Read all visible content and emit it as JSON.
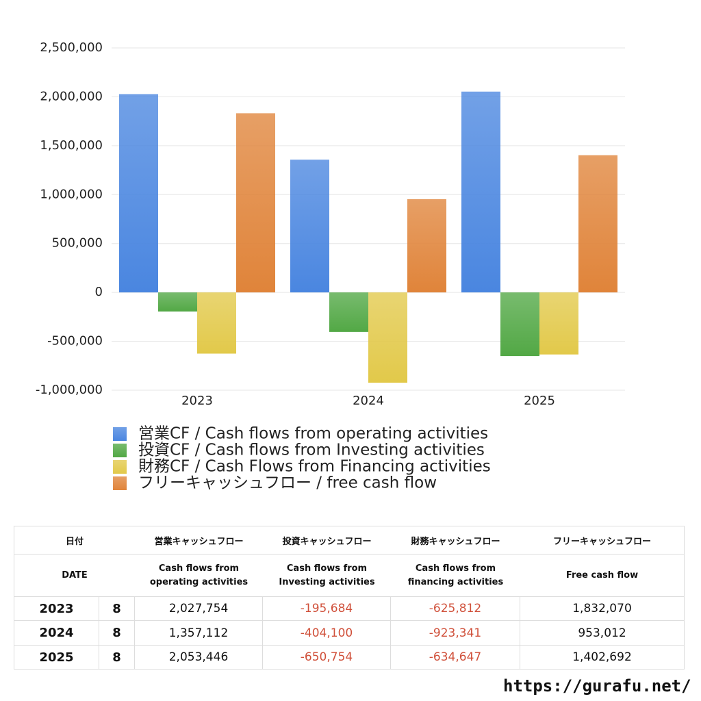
{
  "chart_data": {
    "type": "bar",
    "categories": [
      "2023",
      "2024",
      "2025"
    ],
    "series": [
      {
        "name": "営業CF / Cash flows from operating activities",
        "color": "#4a86e0",
        "values": [
          2027754,
          1357112,
          2053446
        ]
      },
      {
        "name": "投資CF / Cash flows from Investing activities",
        "color": "#52a845",
        "values": [
          -195684,
          -404100,
          -650754
        ]
      },
      {
        "name": "財務CF / Cash Flows from Financing activities",
        "color": "#e2c94a",
        "values": [
          -625812,
          -923341,
          -634647
        ]
      },
      {
        "name": "フリーキャッシュフロー / free cash flow",
        "color": "#e0843a",
        "values": [
          1832070,
          953012,
          1402692
        ]
      }
    ],
    "ylim": [
      -1000000,
      2500000
    ],
    "yticks": [
      {
        "value": -1000000,
        "label": "-1,000,000"
      },
      {
        "value": -500000,
        "label": "-500,000"
      },
      0,
      {
        "value": 500000,
        "label": "500,000"
      },
      {
        "value": 1000000,
        "label": "1,000,000"
      },
      {
        "value": 1500000,
        "label": "1,500,000"
      },
      {
        "value": 2000000,
        "label": "2,000,000"
      },
      {
        "value": 2500000,
        "label": "2,500,000"
      }
    ],
    "grid": true,
    "legend": "bottom"
  },
  "table": {
    "header": [
      [
        "日付",
        "営業キャッシュフロー",
        "投資キャッシュフロー",
        "財務キャッシュフロー",
        "フリーキャッシュフロー"
      ],
      [
        [
          "DATE"
        ],
        [
          "Cash flows from",
          "operating activities"
        ],
        [
          "Cash flows from",
          "Investing activities"
        ],
        [
          "Cash flows from",
          "financing activities"
        ],
        [
          "Free cash flow"
        ]
      ]
    ],
    "rows": [
      [
        "2023",
        "8",
        "2,027,754",
        "-195,684",
        "-625,812",
        "1,832,070"
      ],
      [
        "2024",
        "8",
        "1,357,112",
        "-404,100",
        "-923,341",
        "953,012"
      ],
      [
        "2025",
        "8",
        "2,053,446",
        "-650,754",
        "-634,647",
        "1,402,692"
      ]
    ],
    "negative_color": "#d0503a"
  },
  "footer": {
    "url": "https://gurafu.net/"
  }
}
